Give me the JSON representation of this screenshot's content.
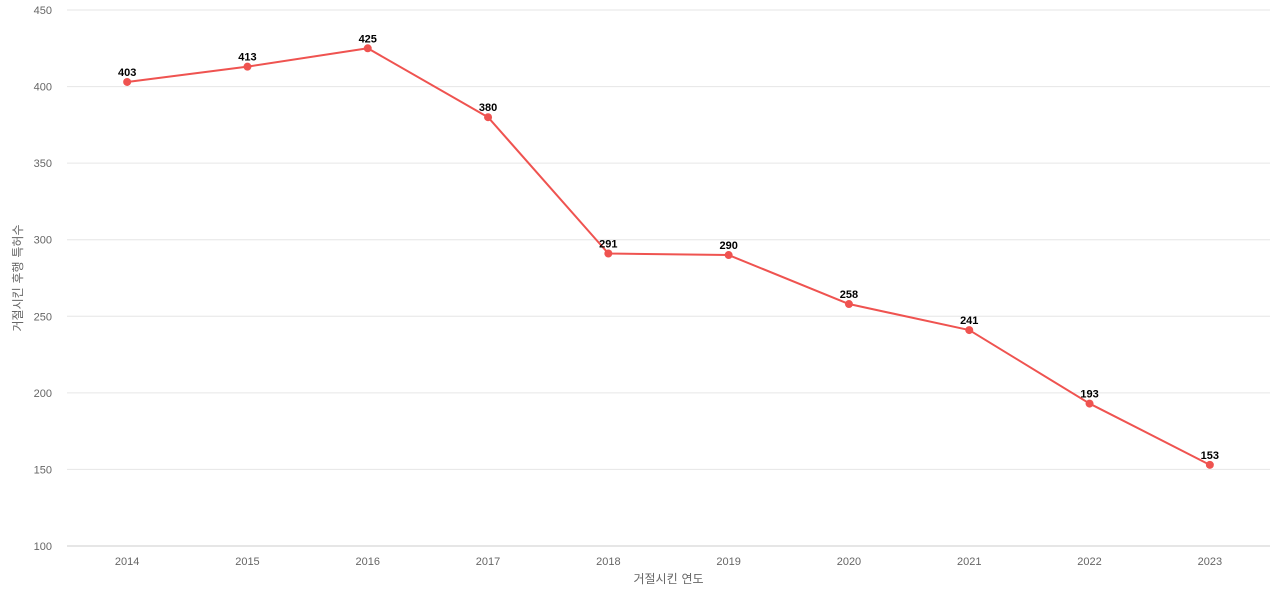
{
  "chart_data": {
    "type": "line",
    "xlabel": "거절시킨 연도",
    "ylabel": "거절시킨 후행 특허수",
    "ylim": [
      100,
      450
    ],
    "yticks": [
      100,
      150,
      200,
      250,
      300,
      350,
      400,
      450
    ],
    "categories": [
      "2014",
      "2015",
      "2016",
      "2017",
      "2018",
      "2019",
      "2020",
      "2021",
      "2022",
      "2023"
    ],
    "series": [
      {
        "values": [
          403,
          413,
          425,
          380,
          291,
          290,
          258,
          241,
          193,
          153
        ],
        "color": "#ef5350"
      }
    ],
    "grid": true,
    "legend": "none"
  }
}
